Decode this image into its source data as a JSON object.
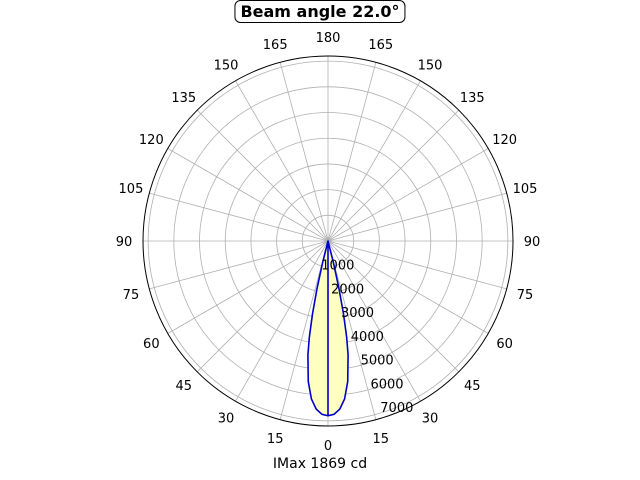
{
  "chart_data": {
    "type": "polar",
    "title": "Beam angle 22.0°",
    "xlabel": "IMax 1869 cd",
    "angle_tick_labels": [
      "0",
      "15",
      "30",
      "45",
      "60",
      "75",
      "90",
      "105",
      "120",
      "135",
      "150",
      "165",
      "180",
      "165",
      "150",
      "135",
      "120",
      "105",
      "90",
      "75",
      "60",
      "45",
      "30",
      "15"
    ],
    "radial_tick_labels": [
      "1000",
      "2000",
      "3000",
      "4000",
      "5000",
      "6000",
      "7000"
    ],
    "radial_ticks": [
      1000,
      2000,
      3000,
      4000,
      5000,
      6000,
      7000
    ],
    "rlim": [
      0,
      7200
    ],
    "grid": true,
    "series": [
      {
        "color": "#0000cc",
        "fill": "#ffffc0",
        "points": [
          {
            "angle": 0,
            "r": 6800
          },
          {
            "angle": 2,
            "r": 6750
          },
          {
            "angle": 4,
            "r": 6560
          },
          {
            "angle": 6,
            "r": 6180
          },
          {
            "angle": 8,
            "r": 5520
          },
          {
            "angle": 10,
            "r": 4500
          },
          {
            "angle": 11,
            "r": 3800
          },
          {
            "angle": 12,
            "r": 2900
          },
          {
            "angle": 13,
            "r": 1900
          },
          {
            "angle": 14,
            "r": 900
          },
          {
            "angle": 15,
            "r": 0
          }
        ]
      }
    ]
  }
}
